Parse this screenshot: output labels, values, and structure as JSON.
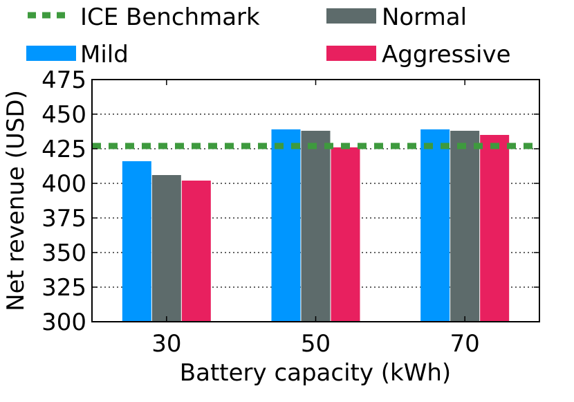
{
  "chart_data": {
    "type": "bar",
    "xlabel": "Battery capacity (kWh)",
    "ylabel": "Net revenue (USD)",
    "ylim": [
      300,
      475
    ],
    "yticks": [
      300,
      325,
      350,
      375,
      400,
      425,
      450,
      475
    ],
    "grid": true,
    "legend_position": "top",
    "categories": [
      "30",
      "50",
      "70"
    ],
    "series": [
      {
        "name": "Mild",
        "color": "#0096ff",
        "values": [
          416,
          439,
          439
        ]
      },
      {
        "name": "Normal",
        "color": "#5d6b6b",
        "values": [
          406,
          438,
          438
        ]
      },
      {
        "name": "Aggressive",
        "color": "#e8205f",
        "values": [
          402,
          426,
          435
        ]
      }
    ],
    "benchmark": {
      "name": "ICE Benchmark",
      "value": 427,
      "color": "#3e9a3e",
      "style": "dashed"
    }
  }
}
